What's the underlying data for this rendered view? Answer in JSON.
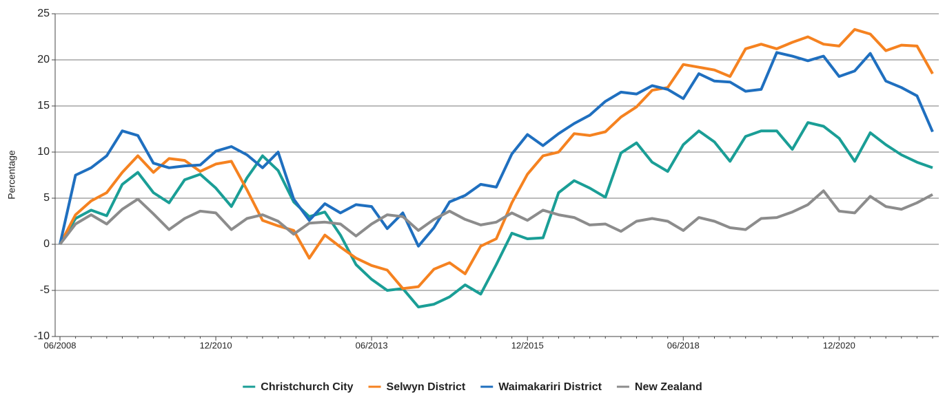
{
  "chart_data": {
    "type": "line",
    "y_label": "Percentage",
    "categories": [
      "06/2008",
      null,
      null,
      null,
      null,
      null,
      null,
      null,
      null,
      null,
      "12/2010",
      null,
      null,
      null,
      null,
      null,
      null,
      null,
      null,
      null,
      "06/2013",
      null,
      null,
      null,
      null,
      null,
      null,
      null,
      null,
      null,
      "12/2015",
      null,
      null,
      null,
      null,
      null,
      null,
      null,
      null,
      null,
      "06/2018",
      null,
      null,
      null,
      null,
      null,
      null,
      null,
      null,
      null,
      "12/2020",
      null,
      null,
      null,
      null,
      null,
      null
    ],
    "series": [
      {
        "name": "Christchurch City",
        "color": "#1a9e96",
        "values": [
          0,
          2.8,
          3.7,
          3.1,
          6.5,
          7.8,
          5.6,
          4.5,
          7.0,
          7.6,
          6.1,
          4.1,
          7.2,
          9.6,
          8.0,
          4.6,
          3.0,
          3.5,
          1.0,
          -2.2,
          -3.8,
          -5.0,
          -4.8,
          -6.8,
          -6.5,
          -5.7,
          -4.4,
          -5.4,
          -2.2,
          1.2,
          0.6,
          0.7,
          5.6,
          6.9,
          6.1,
          5.1,
          9.9,
          11.0,
          8.9,
          7.9,
          10.8,
          12.3,
          11.1,
          9.0,
          11.7,
          12.3,
          12.3,
          10.3,
          13.2,
          12.8,
          11.5,
          9.0,
          12.1,
          10.8,
          9.7,
          8.9,
          8.3
        ]
      },
      {
        "name": "Selwyn District",
        "color": "#f58220",
        "values": [
          0,
          3.2,
          4.7,
          5.6,
          7.8,
          9.6,
          7.8,
          9.3,
          9.1,
          7.9,
          8.7,
          9.0,
          5.9,
          2.6,
          2.0,
          1.5,
          -1.5,
          1.0,
          -0.3,
          -1.5,
          -2.3,
          -2.8,
          -4.8,
          -4.6,
          -2.7,
          -2.0,
          -3.2,
          -0.2,
          0.6,
          4.5,
          7.6,
          9.6,
          10.0,
          12.0,
          11.8,
          12.2,
          13.8,
          14.9,
          16.7,
          17.0,
          19.5,
          19.2,
          18.9,
          18.2,
          21.2,
          21.7,
          21.2,
          21.9,
          22.5,
          21.7,
          21.5,
          23.3,
          22.8,
          21.0,
          21.6,
          21.5,
          18.5
        ]
      },
      {
        "name": "Waimakariri District",
        "color": "#1f6fbf",
        "values": [
          0,
          7.5,
          8.3,
          9.6,
          12.3,
          11.8,
          8.8,
          8.3,
          8.5,
          8.6,
          10.1,
          10.6,
          9.7,
          8.3,
          10.0,
          4.9,
          2.6,
          4.4,
          3.4,
          4.3,
          4.1,
          1.7,
          3.4,
          -0.2,
          1.8,
          4.6,
          5.3,
          6.5,
          6.2,
          9.8,
          11.9,
          10.7,
          12.0,
          13.1,
          14.0,
          15.5,
          16.5,
          16.3,
          17.2,
          16.8,
          15.8,
          18.5,
          17.7,
          17.6,
          16.6,
          16.8,
          20.8,
          20.4,
          19.9,
          20.4,
          18.2,
          18.8,
          20.7,
          17.7,
          17.0,
          16.1,
          12.2
        ]
      },
      {
        "name": "New Zealand",
        "color": "#8c8c8c",
        "values": [
          0,
          2.2,
          3.2,
          2.2,
          3.8,
          4.9,
          3.3,
          1.6,
          2.8,
          3.6,
          3.4,
          1.6,
          2.8,
          3.2,
          2.5,
          1.1,
          2.3,
          2.4,
          2.2,
          0.9,
          2.2,
          3.2,
          3.0,
          1.5,
          2.7,
          3.6,
          2.7,
          2.1,
          2.4,
          3.4,
          2.6,
          3.7,
          3.2,
          2.9,
          2.1,
          2.2,
          1.4,
          2.5,
          2.8,
          2.5,
          1.5,
          2.9,
          2.5,
          1.8,
          1.6,
          2.8,
          2.9,
          3.5,
          4.3,
          5.8,
          3.6,
          3.4,
          5.2,
          4.1,
          3.8,
          4.5,
          5.4
        ]
      }
    ],
    "ylim": [
      -10,
      25
    ],
    "yticks": [
      -10,
      -5,
      0,
      5,
      10,
      15,
      20,
      25
    ],
    "grid": true,
    "legend": "bottom"
  }
}
